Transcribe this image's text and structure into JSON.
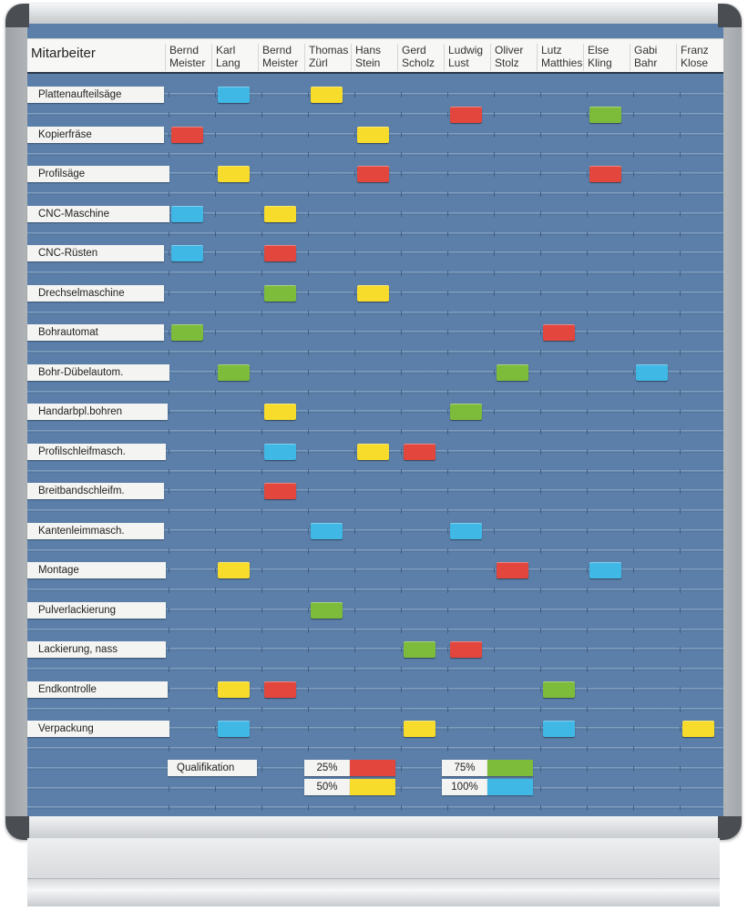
{
  "header": {
    "title": "Mitarbeiter",
    "employees": [
      {
        "first": "Bernd",
        "last": "Meister"
      },
      {
        "first": "Karl",
        "last": "Lang"
      },
      {
        "first": "Bernd",
        "last": "Meister"
      },
      {
        "first": "Thomas",
        "last": "Zürl"
      },
      {
        "first": "Hans",
        "last": "Stein"
      },
      {
        "first": "Gerd",
        "last": "Scholz"
      },
      {
        "first": "Ludwig",
        "last": "Lust"
      },
      {
        "first": "Oliver",
        "last": "Stolz"
      },
      {
        "first": "Lutz",
        "last": "Matthies"
      },
      {
        "first": "Else",
        "last": "Kling"
      },
      {
        "first": "Gabi",
        "last": "Bahr"
      },
      {
        "first": "Franz",
        "last": "Klose"
      }
    ]
  },
  "colors": {
    "red": "#e2463c",
    "yellow": "#f7dc2b",
    "green": "#7dbb3a",
    "cyan": "#3fb8e6",
    "board": "#5b7fa9"
  },
  "machines": [
    {
      "label": "Plattenaufteilsäge",
      "marks": [
        {
          "employee": 1,
          "level": "cyan"
        },
        {
          "employee": 3,
          "level": "yellow"
        },
        {
          "employee": 6,
          "level": "red",
          "row": "lower"
        },
        {
          "employee": 9,
          "level": "green",
          "row": "lower"
        }
      ]
    },
    {
      "label": "Kopierfräse",
      "marks": [
        {
          "employee": 0,
          "level": "red"
        },
        {
          "employee": 4,
          "level": "yellow"
        }
      ]
    },
    {
      "label": "Profilsäge",
      "marks": [
        {
          "employee": 1,
          "level": "yellow"
        },
        {
          "employee": 4,
          "level": "red"
        },
        {
          "employee": 9,
          "level": "red"
        }
      ]
    },
    {
      "label": "CNC-Maschine",
      "marks": [
        {
          "employee": 0,
          "level": "cyan"
        },
        {
          "employee": 2,
          "level": "yellow"
        }
      ]
    },
    {
      "label": "CNC-Rüsten",
      "marks": [
        {
          "employee": 0,
          "level": "cyan"
        },
        {
          "employee": 2,
          "level": "red"
        }
      ]
    },
    {
      "label": "Drechselmaschine",
      "marks": [
        {
          "employee": 2,
          "level": "green"
        },
        {
          "employee": 4,
          "level": "yellow"
        }
      ]
    },
    {
      "label": "Bohrautomat",
      "marks": [
        {
          "employee": 0,
          "level": "green"
        },
        {
          "employee": 8,
          "level": "red"
        }
      ]
    },
    {
      "label": "Bohr-Dübelautom.",
      "marks": [
        {
          "employee": 1,
          "level": "green"
        },
        {
          "employee": 7,
          "level": "green"
        },
        {
          "employee": 10,
          "level": "cyan"
        }
      ]
    },
    {
      "label": "Handarbpl.bohren",
      "marks": [
        {
          "employee": 2,
          "level": "yellow"
        },
        {
          "employee": 6,
          "level": "green"
        }
      ]
    },
    {
      "label": "Profilschleifmasch.",
      "marks": [
        {
          "employee": 2,
          "level": "cyan"
        },
        {
          "employee": 4,
          "level": "yellow"
        },
        {
          "employee": 5,
          "level": "red"
        }
      ]
    },
    {
      "label": "Breitbandschleifm.",
      "marks": [
        {
          "employee": 2,
          "level": "red"
        }
      ]
    },
    {
      "label": "Kantenleimmasch.",
      "marks": [
        {
          "employee": 3,
          "level": "cyan"
        },
        {
          "employee": 6,
          "level": "cyan"
        }
      ]
    },
    {
      "label": "Montage",
      "marks": [
        {
          "employee": 1,
          "level": "yellow"
        },
        {
          "employee": 7,
          "level": "red"
        },
        {
          "employee": 9,
          "level": "cyan"
        }
      ]
    },
    {
      "label": "Pulverlackierung",
      "marks": [
        {
          "employee": 3,
          "level": "green"
        }
      ]
    },
    {
      "label": "Lackierung, nass",
      "marks": [
        {
          "employee": 5,
          "level": "green"
        },
        {
          "employee": 6,
          "level": "red"
        }
      ]
    },
    {
      "label": "Endkontrolle",
      "marks": [
        {
          "employee": 1,
          "level": "yellow"
        },
        {
          "employee": 2,
          "level": "red"
        },
        {
          "employee": 8,
          "level": "green"
        }
      ]
    },
    {
      "label": "Verpackung",
      "marks": [
        {
          "employee": 1,
          "level": "cyan"
        },
        {
          "employee": 5,
          "level": "yellow"
        },
        {
          "employee": 8,
          "level": "cyan"
        },
        {
          "employee": 11,
          "level": "yellow"
        }
      ]
    }
  ],
  "legend": {
    "title": "Qualifikation",
    "items": [
      {
        "pct": "25%",
        "level": "red"
      },
      {
        "pct": "50%",
        "level": "yellow"
      },
      {
        "pct": "75%",
        "level": "green"
      },
      {
        "pct": "100%",
        "level": "cyan"
      }
    ]
  }
}
